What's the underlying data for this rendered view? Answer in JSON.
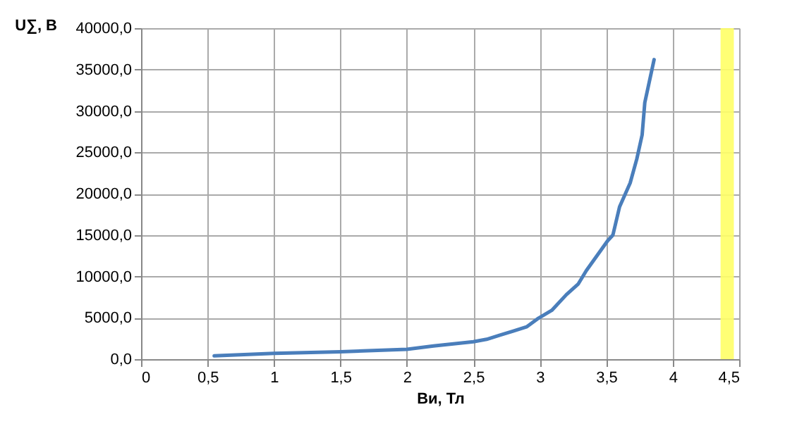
{
  "chart_data": {
    "type": "line",
    "xlabel": "Ви, Тл",
    "ylabel": "U∑, В",
    "x": [
      0.55,
      1.0,
      1.5,
      2.0,
      2.2,
      2.5,
      2.6,
      2.7,
      2.8,
      2.9,
      2.99,
      3.09,
      3.2,
      3.29,
      3.35,
      3.51,
      3.55,
      3.6,
      3.68,
      3.73,
      3.77,
      3.79,
      3.86
    ],
    "series": [
      {
        "color": "#4a7ebb",
        "values": [
          400,
          700,
          900,
          1200,
          1600,
          2100,
          2400,
          2900,
          3400,
          3900,
          4950,
          5900,
          7800,
          9100,
          10700,
          14300,
          15000,
          18400,
          21300,
          24200,
          27100,
          31000,
          36200
        ]
      }
    ],
    "xlim": [
      0,
      4.5
    ],
    "ylim": [
      0,
      40000
    ],
    "xticks": [
      0,
      {
        "value": 0.5,
        "label": "0,5"
      },
      1,
      {
        "value": 1.5,
        "label": "1,5"
      },
      2,
      {
        "value": 2.5,
        "label": "2,5"
      },
      3,
      {
        "value": 3.5,
        "label": "3,5"
      },
      4,
      {
        "value": 4.5,
        "label": "4,5"
      }
    ],
    "yticks": [
      {
        "value": 0,
        "label": "0,0"
      },
      {
        "value": 5000,
        "label": "5000,0"
      },
      {
        "value": 10000,
        "label": "10000,0"
      },
      {
        "value": 15000,
        "label": "15000,0"
      },
      {
        "value": 20000,
        "label": "20000,0"
      },
      {
        "value": 25000,
        "label": "25000,0"
      },
      {
        "value": 30000,
        "label": "30000,0"
      },
      {
        "value": 35000,
        "label": "35000,0"
      },
      {
        "value": 40000,
        "label": "40000,0"
      }
    ],
    "bands": [
      {
        "axis": "x",
        "from": 4.36,
        "to": 4.46,
        "color": "#ffff66"
      }
    ],
    "grid": true,
    "marker": "none",
    "line_style": "solid"
  }
}
